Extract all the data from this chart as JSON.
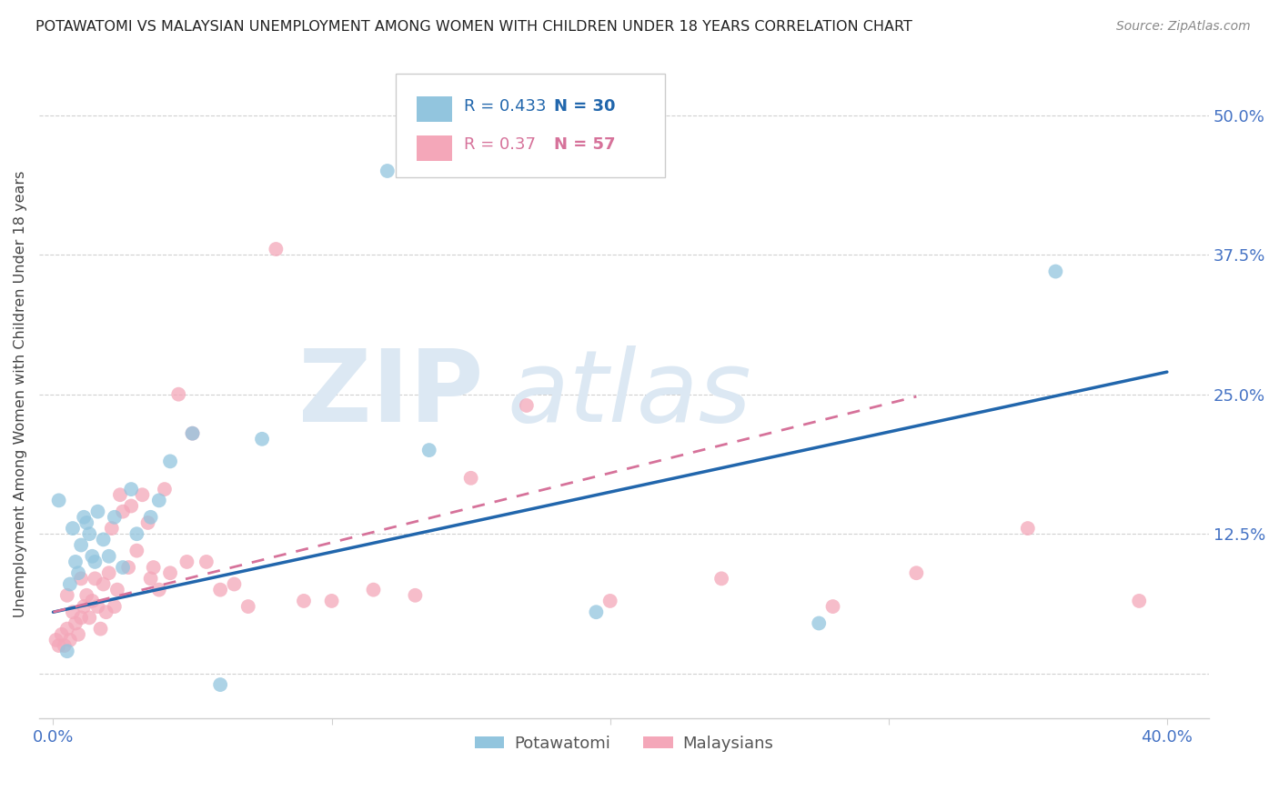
{
  "title": "POTAWATOMI VS MALAYSIAN UNEMPLOYMENT AMONG WOMEN WITH CHILDREN UNDER 18 YEARS CORRELATION CHART",
  "source": "Source: ZipAtlas.com",
  "ylabel": "Unemployment Among Women with Children Under 18 years",
  "xlim": [
    -0.005,
    0.415
  ],
  "ylim": [
    -0.04,
    0.54
  ],
  "xticks": [
    0.0,
    0.1,
    0.2,
    0.3,
    0.4
  ],
  "xticklabels": [
    "0.0%",
    "",
    "",
    "",
    "40.0%"
  ],
  "yticks": [
    0.0,
    0.125,
    0.25,
    0.375,
    0.5
  ],
  "yticklabels": [
    "",
    "12.5%",
    "25.0%",
    "37.5%",
    "50.0%"
  ],
  "blue_R": 0.433,
  "blue_N": 30,
  "pink_R": 0.37,
  "pink_N": 57,
  "blue_color": "#92c5de",
  "pink_color": "#f4a7b9",
  "blue_line_color": "#2166ac",
  "pink_line_color": "#d6729a",
  "tick_color": "#4472c4",
  "grid_color": "#d0d0d0",
  "blue_x": [
    0.002,
    0.005,
    0.006,
    0.007,
    0.008,
    0.009,
    0.01,
    0.011,
    0.012,
    0.013,
    0.014,
    0.015,
    0.016,
    0.018,
    0.02,
    0.022,
    0.025,
    0.028,
    0.03,
    0.035,
    0.038,
    0.042,
    0.05,
    0.06,
    0.075,
    0.12,
    0.135,
    0.195,
    0.275,
    0.36
  ],
  "blue_y": [
    0.155,
    0.02,
    0.08,
    0.13,
    0.1,
    0.09,
    0.115,
    0.14,
    0.135,
    0.125,
    0.105,
    0.1,
    0.145,
    0.12,
    0.105,
    0.14,
    0.095,
    0.165,
    0.125,
    0.14,
    0.155,
    0.19,
    0.215,
    -0.01,
    0.21,
    0.45,
    0.2,
    0.055,
    0.045,
    0.36
  ],
  "pink_x": [
    0.001,
    0.002,
    0.003,
    0.004,
    0.005,
    0.005,
    0.006,
    0.007,
    0.008,
    0.009,
    0.01,
    0.01,
    0.011,
    0.012,
    0.013,
    0.014,
    0.015,
    0.016,
    0.017,
    0.018,
    0.019,
    0.02,
    0.021,
    0.022,
    0.023,
    0.024,
    0.025,
    0.027,
    0.028,
    0.03,
    0.032,
    0.034,
    0.035,
    0.036,
    0.038,
    0.04,
    0.042,
    0.045,
    0.048,
    0.05,
    0.055,
    0.06,
    0.065,
    0.07,
    0.08,
    0.09,
    0.1,
    0.115,
    0.13,
    0.15,
    0.17,
    0.2,
    0.24,
    0.28,
    0.31,
    0.35,
    0.39
  ],
  "pink_y": [
    0.03,
    0.025,
    0.035,
    0.025,
    0.04,
    0.07,
    0.03,
    0.055,
    0.045,
    0.035,
    0.05,
    0.085,
    0.06,
    0.07,
    0.05,
    0.065,
    0.085,
    0.06,
    0.04,
    0.08,
    0.055,
    0.09,
    0.13,
    0.06,
    0.075,
    0.16,
    0.145,
    0.095,
    0.15,
    0.11,
    0.16,
    0.135,
    0.085,
    0.095,
    0.075,
    0.165,
    0.09,
    0.25,
    0.1,
    0.215,
    0.1,
    0.075,
    0.08,
    0.06,
    0.38,
    0.065,
    0.065,
    0.075,
    0.07,
    0.175,
    0.24,
    0.065,
    0.085,
    0.06,
    0.09,
    0.13,
    0.065
  ],
  "blue_line_x0": 0.0,
  "blue_line_x1": 0.4,
  "blue_line_y0": 0.055,
  "blue_line_y1": 0.27,
  "pink_line_x0": 0.0,
  "pink_line_x1": 0.31,
  "pink_line_y0": 0.055,
  "pink_line_y1": 0.248
}
